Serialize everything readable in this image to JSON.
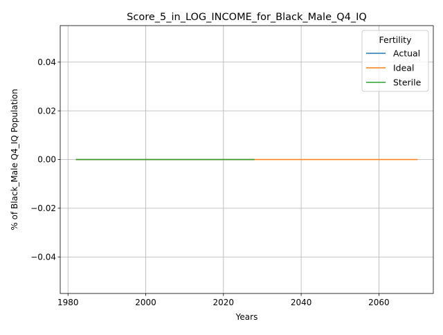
{
  "chart_data": {
    "type": "line",
    "title": "Score_5_in_LOG_INCOME_for_Black_Male_Q4_IQ",
    "xlabel": "Years",
    "ylabel": "% of Black_Male Q4_IQ Population",
    "xlim": [
      1978,
      2074
    ],
    "ylim": [
      -0.055,
      0.055
    ],
    "x_ticks": [
      1980,
      2000,
      2020,
      2040,
      2060
    ],
    "y_ticks": [
      -0.04,
      -0.02,
      0.0,
      0.02,
      0.04
    ],
    "y_tick_labels": [
      "−0.04",
      "−0.02",
      "0.00",
      "0.02",
      "0.04"
    ],
    "grid": true,
    "legend": {
      "title": "Fertility",
      "placement": "top-right"
    },
    "series": [
      {
        "name": "Actual",
        "color": "#1f77b4",
        "x": [
          1982,
          2028
        ],
        "y": [
          0,
          0
        ]
      },
      {
        "name": "Ideal",
        "color": "#ff7f0e",
        "x": [
          1982,
          2070
        ],
        "y": [
          0,
          0
        ]
      },
      {
        "name": "Sterile",
        "color": "#2ca02c",
        "x": [
          1982,
          2028
        ],
        "y": [
          0,
          0
        ]
      }
    ]
  }
}
